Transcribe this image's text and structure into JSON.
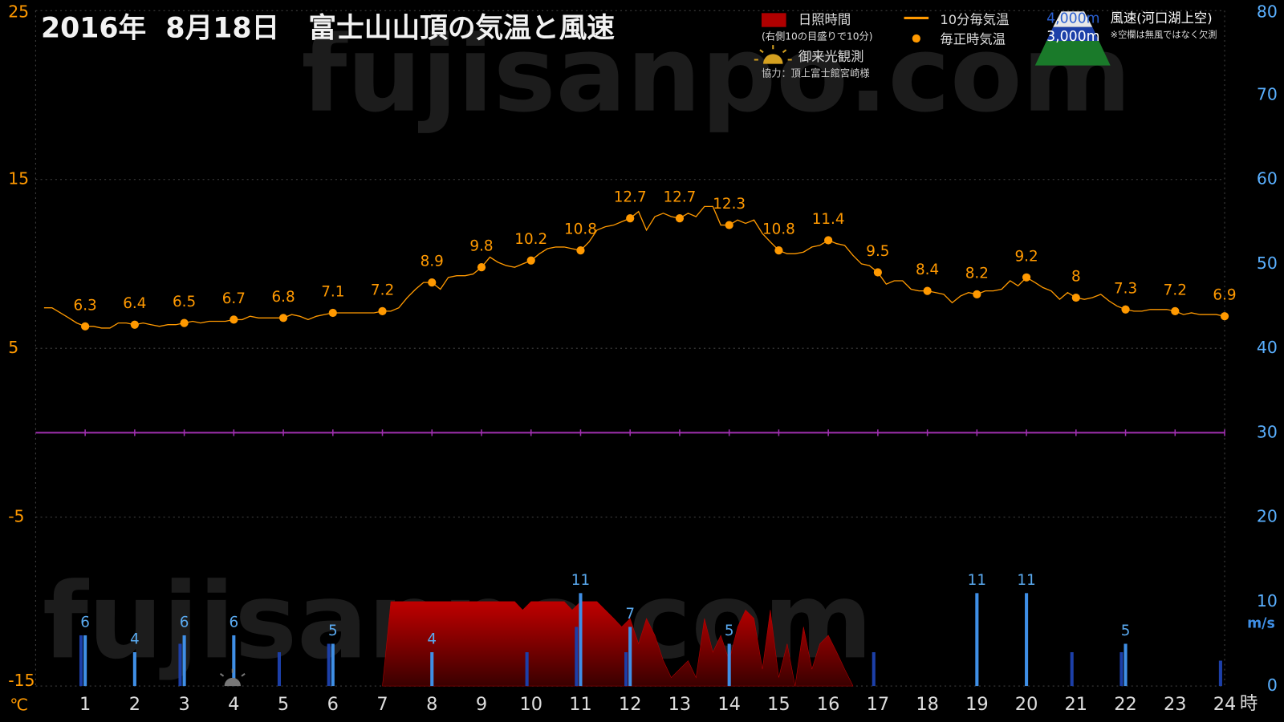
{
  "chart_data": {
    "type": "combo",
    "title": "2016年  8月18日   富士山山頂の気温と風速",
    "watermark": "fujisanpo.com",
    "xlim": [
      0,
      24
    ],
    "xticks": [
      1,
      2,
      3,
      4,
      5,
      6,
      7,
      8,
      9,
      10,
      11,
      12,
      13,
      14,
      15,
      16,
      17,
      18,
      19,
      20,
      21,
      22,
      23,
      24
    ],
    "x_unit": "時",
    "ylim": [
      -15,
      25
    ],
    "yticks": [
      -15,
      -5,
      5,
      15,
      25
    ],
    "y_unit": "℃",
    "y2lim": [
      0,
      80
    ],
    "y2ticks": [
      0,
      10,
      20,
      30,
      40,
      50,
      60,
      70,
      80
    ],
    "y2_unit": "m/s",
    "grid": true,
    "freezing_line_color": "#a030b0",
    "series": [
      {
        "name": "日照時間",
        "scale_note": "(右側10の目盛りで10分)",
        "type": "area",
        "axis": "y2",
        "color": "#c00000",
        "x": [
          7,
          7.17,
          7.33,
          7.5,
          7.67,
          7.83,
          8,
          8.17,
          8.33,
          8.5,
          8.67,
          8.83,
          9,
          9.17,
          9.33,
          9.5,
          9.67,
          9.83,
          10,
          10.17,
          10.33,
          10.5,
          10.67,
          10.83,
          11,
          11.17,
          11.33,
          11.5,
          11.67,
          11.83,
          12,
          12.17,
          12.33,
          12.5,
          12.67,
          12.83,
          13,
          13.17,
          13.33,
          13.5,
          13.67,
          13.83,
          14,
          14.17,
          14.33,
          14.5,
          14.67,
          14.83,
          15,
          15.17,
          15.33,
          15.5,
          15.67,
          15.83,
          16,
          16.17,
          16.33,
          16.5
        ],
        "values": [
          0,
          10,
          10,
          10,
          10,
          10,
          10,
          10,
          10,
          10,
          10,
          10,
          10,
          10,
          10,
          10,
          10,
          9,
          10,
          10,
          10,
          10,
          10,
          9,
          10,
          10,
          10,
          9,
          8,
          7,
          8,
          5,
          8,
          6,
          3,
          1,
          2,
          3,
          1,
          8,
          4,
          6,
          3,
          7,
          9,
          8,
          2,
          9,
          1,
          5,
          0,
          7,
          2,
          5,
          6,
          4,
          2,
          0
        ]
      },
      {
        "name": "10分毎気温",
        "type": "line",
        "color": "#ff9900",
        "x": [
          0.17,
          0.33,
          0.5,
          0.67,
          0.83,
          1,
          1.17,
          1.33,
          1.5,
          1.67,
          1.83,
          2,
          2.17,
          2.33,
          2.5,
          2.67,
          2.83,
          3,
          3.17,
          3.33,
          3.5,
          3.67,
          3.83,
          4,
          4.17,
          4.33,
          4.5,
          4.67,
          4.83,
          5,
          5.17,
          5.33,
          5.5,
          5.67,
          5.83,
          6,
          6.17,
          6.33,
          6.5,
          6.67,
          6.83,
          7,
          7.17,
          7.33,
          7.5,
          7.67,
          7.83,
          8,
          8.17,
          8.33,
          8.5,
          8.67,
          8.83,
          9,
          9.17,
          9.33,
          9.5,
          9.67,
          9.83,
          10,
          10.17,
          10.33,
          10.5,
          10.67,
          10.83,
          11,
          11.17,
          11.33,
          11.5,
          11.67,
          11.83,
          12,
          12.17,
          12.33,
          12.5,
          12.67,
          12.83,
          13,
          13.17,
          13.33,
          13.5,
          13.67,
          13.83,
          14,
          14.17,
          14.33,
          14.5,
          14.67,
          14.83,
          15,
          15.17,
          15.33,
          15.5,
          15.67,
          15.83,
          16,
          16.17,
          16.33,
          16.5,
          16.67,
          16.83,
          17,
          17.17,
          17.33,
          17.5,
          17.67,
          17.83,
          18,
          18.17,
          18.33,
          18.5,
          18.67,
          18.83,
          19,
          19.17,
          19.33,
          19.5,
          19.67,
          19.83,
          20,
          20.17,
          20.33,
          20.5,
          20.67,
          20.83,
          21,
          21.17,
          21.33,
          21.5,
          21.67,
          21.83,
          22,
          22.17,
          22.33,
          22.5,
          22.67,
          22.83,
          23,
          23.17,
          23.33,
          23.5,
          23.67,
          23.83,
          24
        ],
        "values": [
          7.4,
          7.4,
          7.1,
          6.8,
          6.5,
          6.3,
          6.3,
          6.2,
          6.2,
          6.5,
          6.5,
          6.4,
          6.5,
          6.4,
          6.3,
          6.4,
          6.4,
          6.5,
          6.6,
          6.5,
          6.6,
          6.6,
          6.6,
          6.7,
          6.7,
          6.9,
          6.8,
          6.8,
          6.8,
          6.8,
          7.0,
          6.9,
          6.7,
          6.9,
          7.0,
          7.1,
          7.1,
          7.1,
          7.1,
          7.1,
          7.1,
          7.2,
          7.2,
          7.4,
          8.0,
          8.5,
          8.9,
          8.9,
          8.5,
          9.2,
          9.3,
          9.3,
          9.4,
          9.8,
          10.4,
          10.1,
          9.9,
          9.8,
          10.0,
          10.2,
          10.6,
          10.9,
          11.0,
          11.0,
          10.9,
          10.8,
          11.3,
          12.0,
          12.2,
          12.3,
          12.5,
          12.7,
          13.1,
          12.0,
          12.8,
          13.0,
          12.8,
          12.7,
          13.0,
          12.8,
          13.4,
          13.4,
          12.3,
          12.3,
          12.6,
          12.4,
          12.6,
          11.8,
          11.3,
          10.8,
          10.6,
          10.6,
          10.7,
          11.0,
          11.1,
          11.4,
          11.2,
          11.1,
          10.5,
          10.0,
          9.9,
          9.5,
          8.8,
          9.0,
          9.0,
          8.5,
          8.4,
          8.4,
          8.3,
          8.2,
          7.7,
          8.1,
          8.3,
          8.2,
          8.4,
          8.4,
          8.5,
          9.0,
          8.7,
          9.2,
          8.9,
          8.6,
          8.4,
          7.9,
          8.3,
          8.0,
          7.9,
          8.0,
          8.2,
          7.8,
          7.5,
          7.3,
          7.2,
          7.2,
          7.3,
          7.3,
          7.3,
          7.2,
          7.0,
          7.1,
          7.0,
          7.0,
          7.0,
          6.9
        ]
      },
      {
        "name": "毎正時気温",
        "type": "scatter",
        "color": "#ff9900",
        "x": [
          1,
          2,
          3,
          4,
          5,
          6,
          7,
          8,
          9,
          10,
          11,
          12,
          13,
          14,
          15,
          16,
          17,
          18,
          19,
          20,
          21,
          22,
          23,
          24
        ],
        "values": [
          6.3,
          6.4,
          6.5,
          6.7,
          6.8,
          7.1,
          7.2,
          8.9,
          9.8,
          10.2,
          10.8,
          12.7,
          12.7,
          12.3,
          10.8,
          11.4,
          9.5,
          8.4,
          8.2,
          9.2,
          8,
          7.3,
          7.2,
          6.9
        ]
      },
      {
        "name": "4,000m",
        "type": "bar",
        "axis": "y2",
        "color": "#1c3fa8",
        "x": [
          1,
          2,
          3,
          4,
          5,
          6,
          7,
          8,
          9,
          10,
          11,
          12,
          13,
          14,
          15,
          16,
          17,
          18,
          19,
          20,
          21,
          22,
          23,
          24
        ],
        "values": [
          6,
          null,
          5,
          null,
          4,
          5,
          null,
          null,
          null,
          4,
          7,
          4,
          null,
          null,
          null,
          null,
          4,
          null,
          null,
          null,
          4,
          4,
          null,
          3
        ]
      },
      {
        "name": "3,000m",
        "type": "bar",
        "axis": "y2",
        "color": "#3f8fe6",
        "labels": true,
        "x": [
          1,
          2,
          3,
          4,
          5,
          6,
          7,
          8,
          9,
          10,
          11,
          12,
          13,
          14,
          15,
          16,
          17,
          18,
          19,
          20,
          21,
          22,
          23,
          24
        ],
        "values": [
          6,
          4,
          6,
          6,
          null,
          5,
          null,
          4,
          null,
          null,
          11,
          7,
          null,
          5,
          null,
          null,
          null,
          null,
          11,
          11,
          null,
          5,
          null,
          null
        ]
      }
    ],
    "wind_title": "風速(河口湖上空)",
    "wind_note": "※空欄は無風ではなく欠測",
    "sunrise_label": "御来光観測",
    "credit": "協力：頂上富士館宮崎様"
  }
}
